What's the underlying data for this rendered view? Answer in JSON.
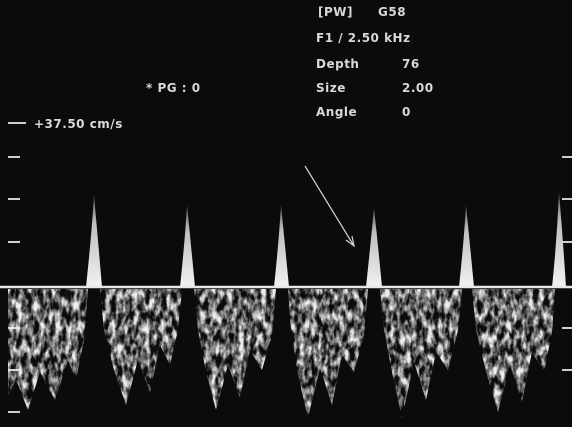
{
  "header": {
    "mode": "[PW]",
    "gain": "G58",
    "frequency": "F1 / 2.50 kHz"
  },
  "settings": [
    {
      "label": "Depth",
      "value": "76"
    },
    {
      "label": "Size",
      "value": "2.00"
    },
    {
      "label": "Angle",
      "value": "0"
    }
  ],
  "pressure_gradient": "* PG : 0",
  "velocity_scale": "+37.50 cm/s"
}
